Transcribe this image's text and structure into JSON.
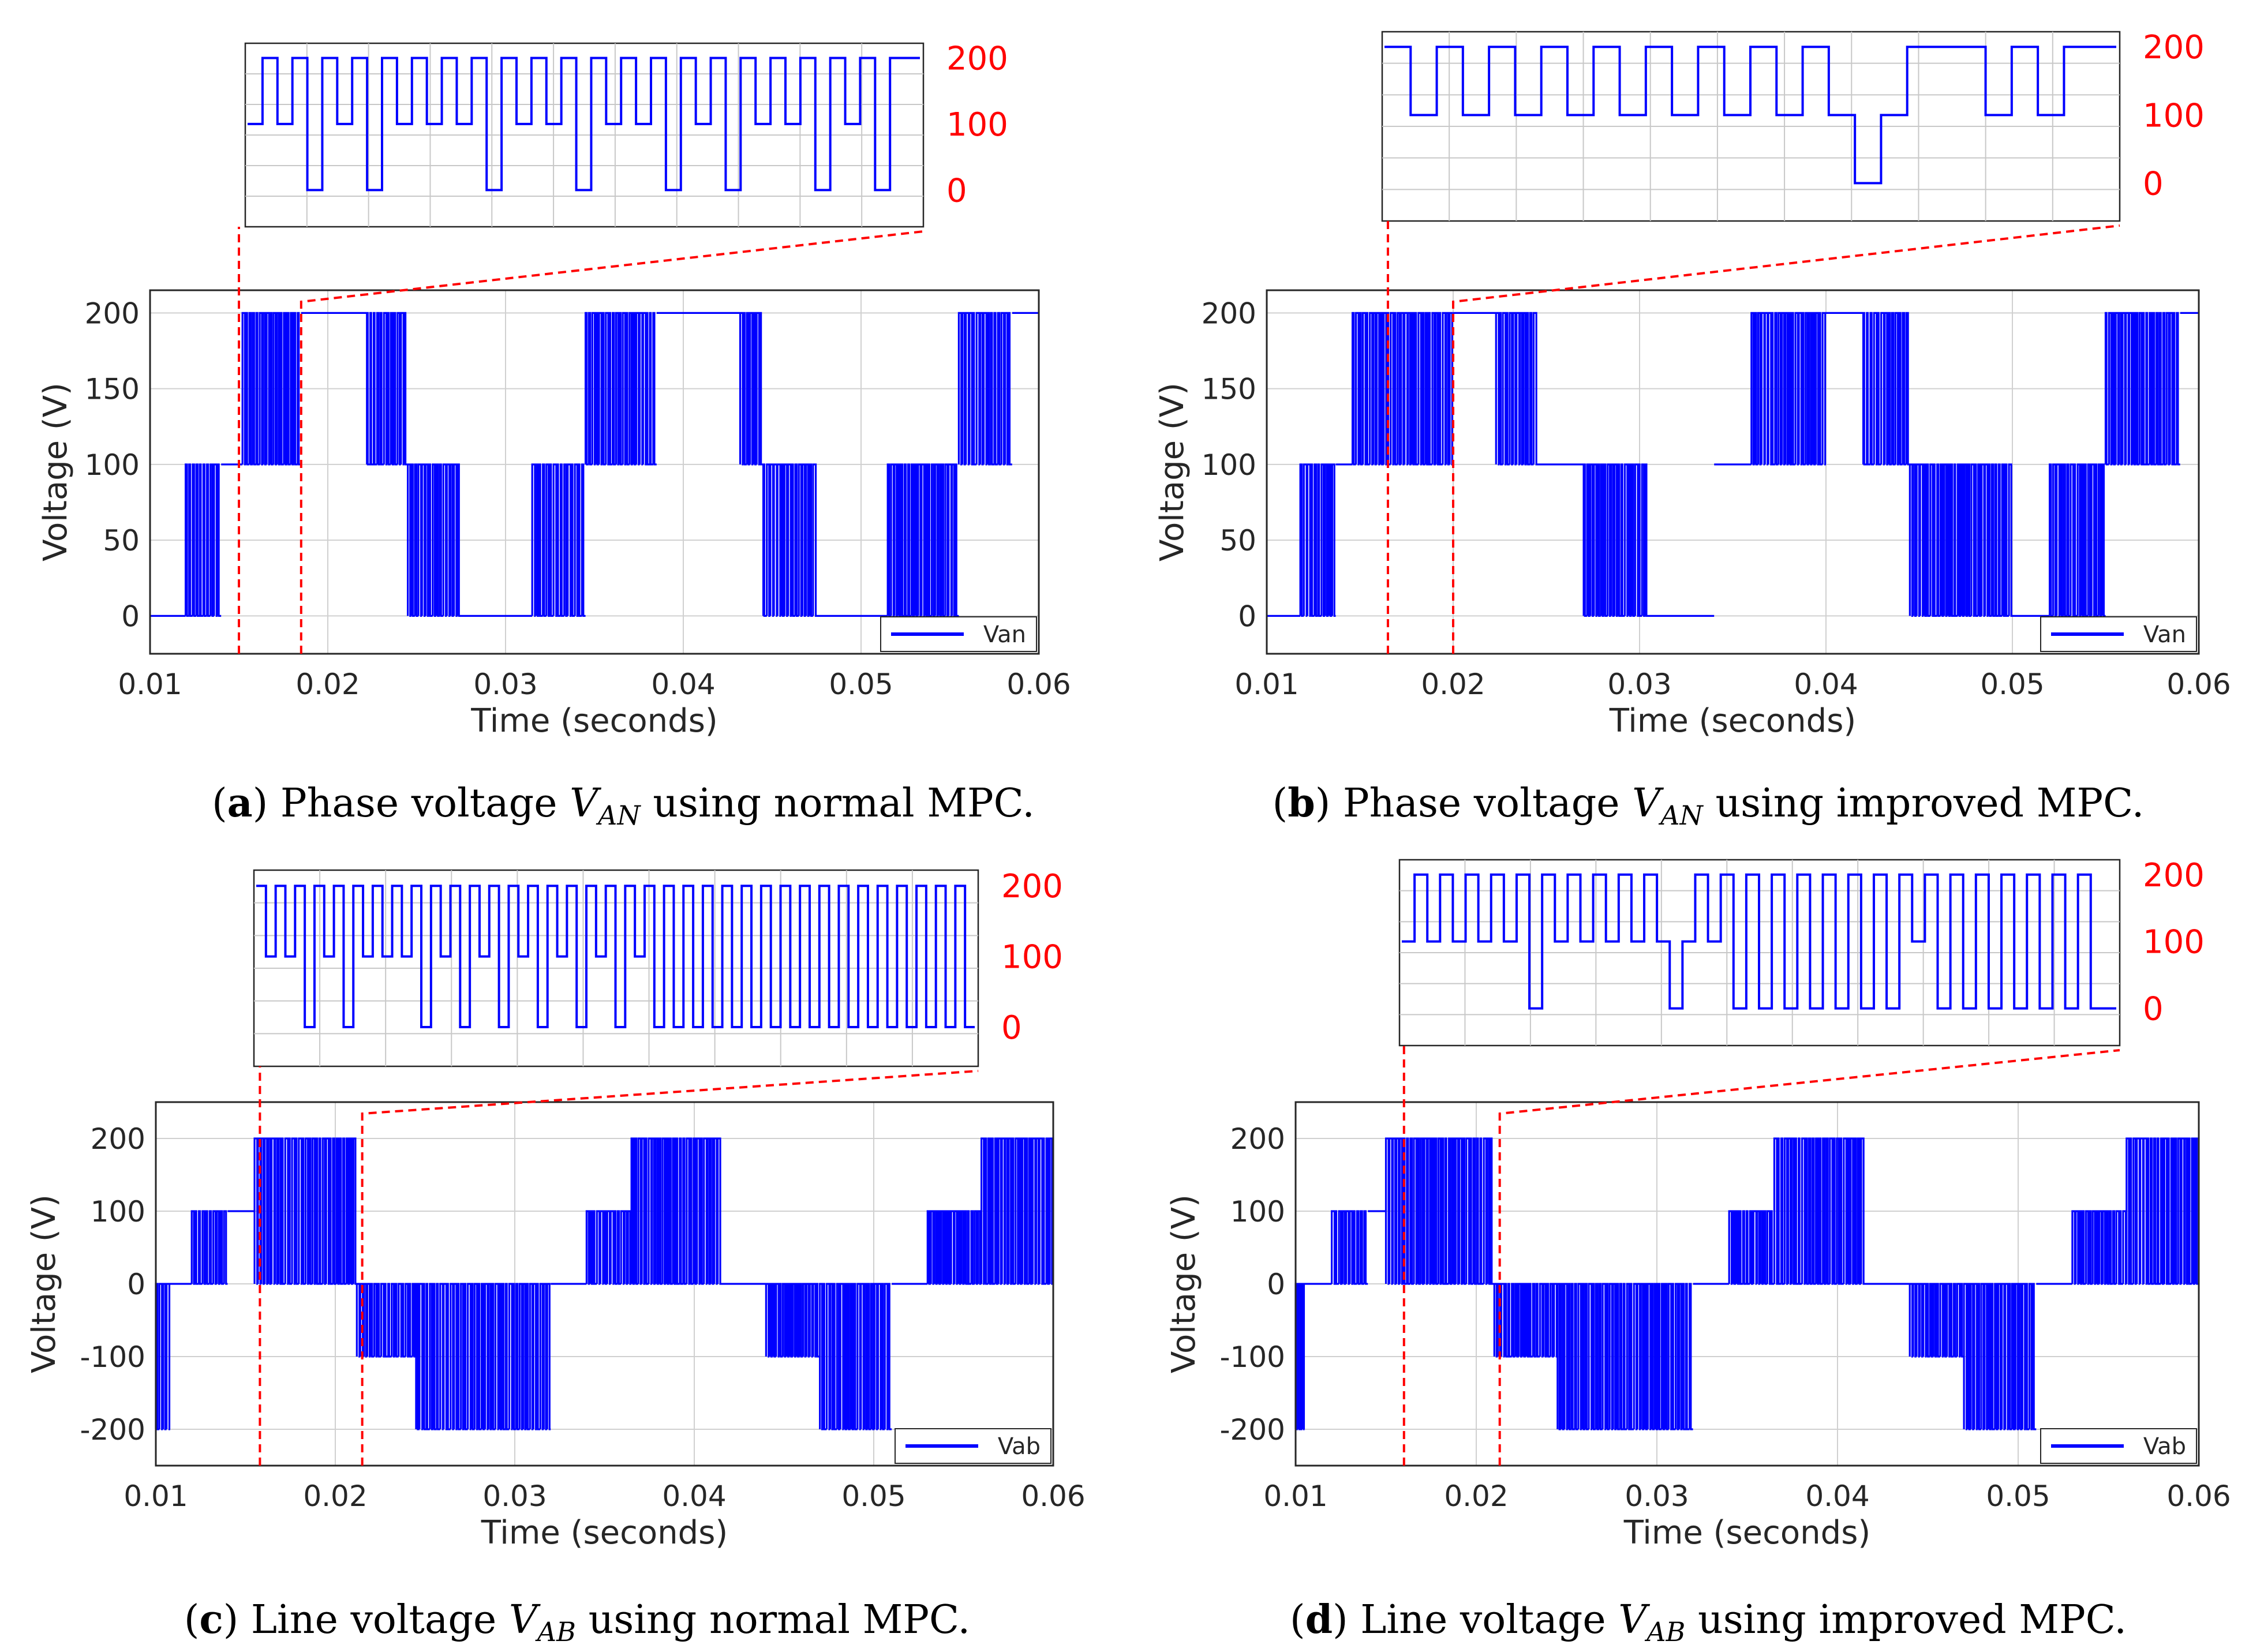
{
  "figure": {
    "description_panels": 4,
    "signal_color": "#0000ff",
    "zoom_color": "#ff0000"
  },
  "chart_data": [
    {
      "type": "line",
      "id": "a",
      "caption": {
        "letter": "a",
        "pre": " Phase voltage ",
        "var_main": "V",
        "var_sub": "AN",
        "post": "  using normal MPC."
      },
      "xlabel": "Time (seconds)",
      "ylabel": "Voltage (V)",
      "xlim": [
        0.01,
        0.06
      ],
      "ylim": [
        -25,
        215
      ],
      "xticks": [
        "0.01",
        "0.02",
        "0.03",
        "0.04",
        "0.05",
        "0.06"
      ],
      "yticks": [
        0,
        50,
        100,
        150,
        200
      ],
      "legend": "Van",
      "legend_position": "bottom-right",
      "grid": true,
      "zoom_window": [
        0.015,
        0.0185
      ],
      "zoom_yticks": [
        "200",
        "100",
        "0"
      ],
      "levels": [
        0,
        100,
        200
      ],
      "segments": [
        [
          0.01,
          0.012,
          "s",
          0
        ],
        [
          0.012,
          0.014,
          "p",
          0,
          100
        ],
        [
          0.014,
          0.0152,
          "s",
          100
        ],
        [
          0.0152,
          0.0185,
          "p",
          100,
          200
        ],
        [
          0.0185,
          0.0222,
          "s",
          200
        ],
        [
          0.0222,
          0.0245,
          "p",
          100,
          200
        ],
        [
          0.0245,
          0.0275,
          "p",
          0,
          100
        ],
        [
          0.0275,
          0.0315,
          "s",
          0
        ],
        [
          0.0315,
          0.0345,
          "p",
          0,
          100
        ],
        [
          0.0345,
          0.0385,
          "p",
          100,
          200
        ],
        [
          0.0385,
          0.0432,
          "s",
          200
        ],
        [
          0.0432,
          0.0445,
          "p",
          100,
          200
        ],
        [
          0.0445,
          0.0475,
          "p",
          0,
          100
        ],
        [
          0.0475,
          0.0515,
          "s",
          0
        ],
        [
          0.0515,
          0.0555,
          "p",
          0,
          100
        ],
        [
          0.0555,
          0.0585,
          "p",
          100,
          200
        ],
        [
          0.0585,
          0.06,
          "s",
          200
        ]
      ],
      "zoom_pattern": [
        100,
        200,
        100,
        200,
        0,
        200,
        100,
        200,
        0,
        200,
        100,
        200,
        100,
        200,
        100,
        200,
        0,
        200,
        100,
        200,
        100,
        200,
        0,
        200,
        100,
        200,
        100,
        200,
        0,
        200,
        100,
        200,
        0,
        200,
        100,
        200,
        100,
        200,
        0,
        200,
        100,
        200,
        0,
        200,
        200
      ]
    },
    {
      "type": "line",
      "id": "b",
      "caption": {
        "letter": "b",
        "pre": " Phase voltage ",
        "var_main": "V",
        "var_sub": "AN",
        "post": "  using improved MPC."
      },
      "xlabel": "Time (seconds)",
      "ylabel": "Voltage (V)",
      "xlim": [
        0.01,
        0.06
      ],
      "ylim": [
        -25,
        215
      ],
      "xticks": [
        "0.01",
        "0.02",
        "0.03",
        "0.04",
        "0.05",
        "0.06"
      ],
      "yticks": [
        0,
        50,
        100,
        150,
        200
      ],
      "legend": "Van",
      "legend_position": "bottom-right",
      "grid": true,
      "zoom_window": [
        0.0165,
        0.02
      ],
      "zoom_yticks": [
        "200",
        "100",
        "0"
      ],
      "levels": [
        0,
        100,
        200
      ],
      "segments": [
        [
          0.01,
          0.0118,
          "s",
          0
        ],
        [
          0.0118,
          0.0137,
          "p",
          0,
          100
        ],
        [
          0.0137,
          0.0146,
          "s",
          100
        ],
        [
          0.0146,
          0.02,
          "p",
          100,
          200
        ],
        [
          0.02,
          0.0223,
          "s",
          200
        ],
        [
          0.0223,
          0.0245,
          "p",
          100,
          200
        ],
        [
          0.0245,
          0.027,
          "s",
          100
        ],
        [
          0.027,
          0.0305,
          "p",
          0,
          100
        ],
        [
          0.0305,
          0.034,
          "s",
          0
        ],
        [
          0.034,
          0.036,
          "s",
          100
        ],
        [
          0.036,
          0.04,
          "p",
          100,
          200
        ],
        [
          0.04,
          0.042,
          "s",
          200
        ],
        [
          0.042,
          0.0445,
          "p",
          100,
          200
        ],
        [
          0.0445,
          0.05,
          "p",
          0,
          100
        ],
        [
          0.05,
          0.052,
          "s",
          0
        ],
        [
          0.052,
          0.055,
          "p",
          0,
          100
        ],
        [
          0.055,
          0.059,
          "p",
          100,
          200
        ],
        [
          0.059,
          0.06,
          "s",
          200
        ]
      ],
      "zoom_pattern": [
        200,
        100,
        200,
        100,
        200,
        100,
        200,
        100,
        200,
        100,
        200,
        100,
        200,
        100,
        200,
        100,
        200,
        100,
        0,
        100,
        200,
        200,
        200,
        100,
        200,
        100,
        200,
        200
      ]
    },
    {
      "type": "line",
      "id": "c",
      "caption": {
        "letter": "c",
        "pre": " Line voltage ",
        "var_main": "V",
        "var_sub": "AB",
        "post": "  using normal MPC."
      },
      "xlabel": "Time (seconds)",
      "ylabel": "Voltage (V)",
      "xlim": [
        0.01,
        0.06
      ],
      "ylim": [
        -250,
        250
      ],
      "xticks": [
        "0.01",
        "0.02",
        "0.03",
        "0.04",
        "0.05",
        "0.06"
      ],
      "yticks": [
        -200,
        -100,
        0,
        100,
        200
      ],
      "legend": "Vab",
      "legend_position": "bottom-right",
      "grid": true,
      "zoom_window": [
        0.0158,
        0.0215
      ],
      "zoom_yticks": [
        "200",
        "100",
        "0"
      ],
      "levels": [
        -200,
        -100,
        0,
        100,
        200
      ],
      "segments": [
        [
          0.01,
          0.0108,
          "p",
          -200,
          0
        ],
        [
          0.0108,
          0.012,
          "s",
          0
        ],
        [
          0.012,
          0.014,
          "p",
          0,
          100
        ],
        [
          0.014,
          0.0155,
          "s",
          100
        ],
        [
          0.0155,
          0.0212,
          "p",
          0,
          200
        ],
        [
          0.0212,
          0.0245,
          "p",
          -100,
          0
        ],
        [
          0.0245,
          0.032,
          "p",
          -200,
          0
        ],
        [
          0.032,
          0.034,
          "s",
          0
        ],
        [
          0.034,
          0.0365,
          "p",
          0,
          100
        ],
        [
          0.0365,
          0.0415,
          "p",
          0,
          200
        ],
        [
          0.0415,
          0.044,
          "s",
          0
        ],
        [
          0.044,
          0.047,
          "p",
          -100,
          0
        ],
        [
          0.047,
          0.051,
          "p",
          -200,
          0
        ],
        [
          0.051,
          0.053,
          "s",
          0
        ],
        [
          0.053,
          0.056,
          "p",
          0,
          100
        ],
        [
          0.056,
          0.06,
          "p",
          0,
          200
        ]
      ],
      "zoom_pattern": [
        200,
        100,
        200,
        100,
        200,
        0,
        200,
        100,
        200,
        0,
        200,
        100,
        200,
        100,
        200,
        100,
        200,
        0,
        200,
        100,
        200,
        0,
        200,
        100,
        200,
        0,
        200,
        100,
        200,
        0,
        200,
        100,
        200,
        0,
        200,
        100,
        200,
        0,
        200,
        100,
        200,
        0,
        200,
        0,
        200,
        0,
        200,
        0,
        200,
        0,
        200,
        0,
        200,
        0,
        200,
        0,
        200,
        0,
        200,
        0,
        200,
        0,
        200,
        0,
        200,
        0,
        200,
        0,
        200,
        0,
        200,
        0,
        200,
        0
      ]
    },
    {
      "type": "line",
      "id": "d",
      "caption": {
        "letter": "d",
        "pre": " Line voltage ",
        "var_main": "V",
        "var_sub": "AB",
        "post": "  using improved MPC."
      },
      "xlabel": "Time (seconds)",
      "ylabel": "Voltage (V)",
      "xlim": [
        0.01,
        0.06
      ],
      "ylim": [
        -250,
        250
      ],
      "xticks": [
        "0.01",
        "0.02",
        "0.03",
        "0.04",
        "0.05",
        "0.06"
      ],
      "yticks": [
        -200,
        -100,
        0,
        100,
        200
      ],
      "legend": "Vab",
      "legend_position": "bottom-right",
      "grid": true,
      "zoom_window": [
        0.016,
        0.0213
      ],
      "zoom_yticks": [
        "200",
        "100",
        "0"
      ],
      "levels": [
        -200,
        -100,
        0,
        100,
        200
      ],
      "segments": [
        [
          0.01,
          0.0105,
          "p",
          -200,
          0
        ],
        [
          0.0105,
          0.012,
          "s",
          0
        ],
        [
          0.012,
          0.014,
          "p",
          0,
          100
        ],
        [
          0.014,
          0.015,
          "s",
          100
        ],
        [
          0.015,
          0.021,
          "p",
          0,
          200
        ],
        [
          0.021,
          0.0245,
          "p",
          -100,
          0
        ],
        [
          0.0245,
          0.032,
          "p",
          -200,
          0
        ],
        [
          0.032,
          0.034,
          "s",
          0
        ],
        [
          0.034,
          0.0365,
          "p",
          0,
          100
        ],
        [
          0.0365,
          0.0415,
          "p",
          0,
          200
        ],
        [
          0.0415,
          0.044,
          "s",
          0
        ],
        [
          0.044,
          0.047,
          "p",
          -100,
          0
        ],
        [
          0.047,
          0.051,
          "p",
          -200,
          0
        ],
        [
          0.051,
          0.053,
          "s",
          0
        ],
        [
          0.053,
          0.056,
          "p",
          0,
          100
        ],
        [
          0.056,
          0.06,
          "p",
          0,
          200
        ]
      ],
      "zoom_pattern": [
        100,
        200,
        100,
        200,
        100,
        200,
        100,
        200,
        100,
        200,
        0,
        200,
        100,
        200,
        100,
        200,
        100,
        200,
        100,
        200,
        100,
        0,
        100,
        200,
        100,
        200,
        0,
        200,
        0,
        200,
        0,
        200,
        0,
        200,
        0,
        200,
        0,
        200,
        0,
        200,
        100,
        200,
        0,
        200,
        0,
        200,
        0,
        200,
        0,
        200,
        0,
        200,
        0,
        200,
        0,
        0
      ]
    }
  ]
}
